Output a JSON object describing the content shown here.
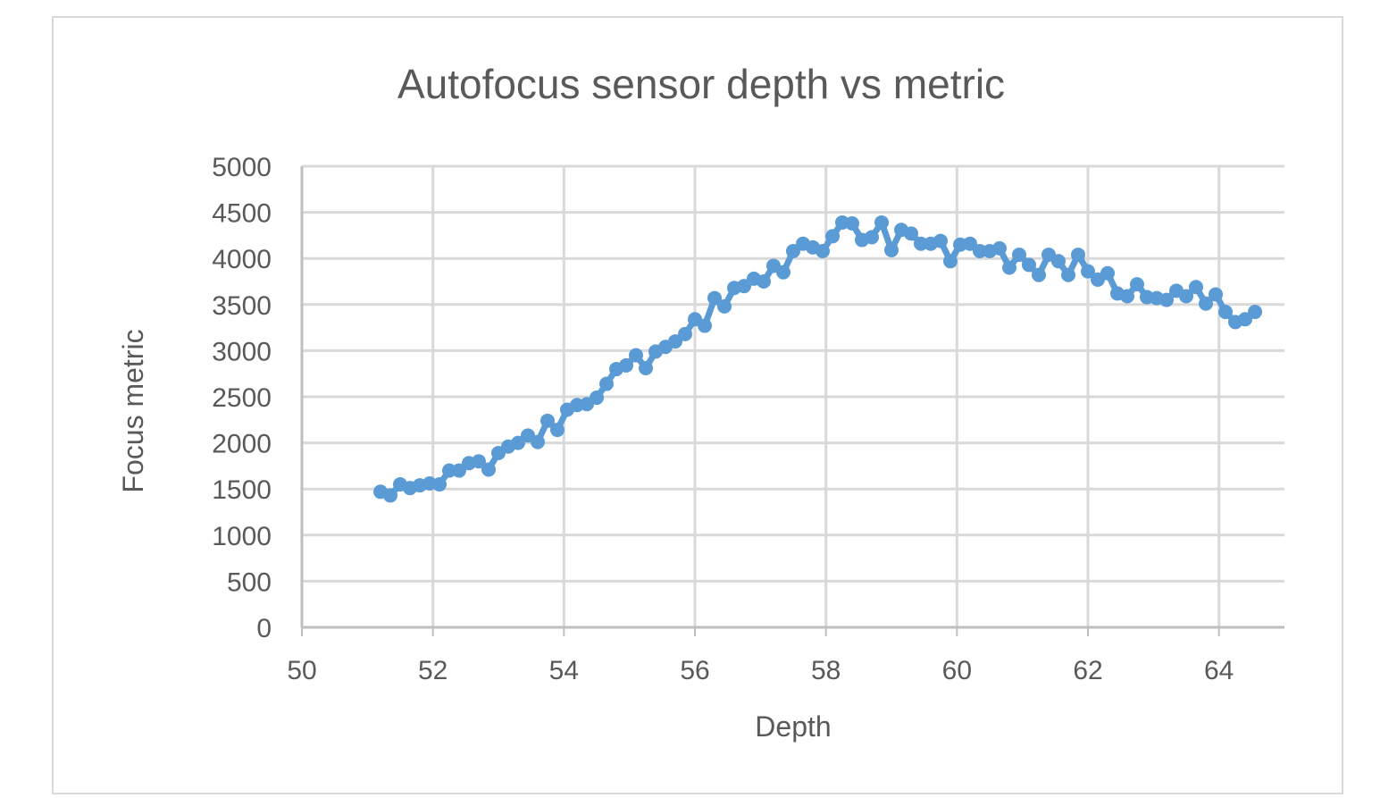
{
  "chart_data": {
    "type": "line",
    "title": "Autofocus sensor depth vs metric",
    "xlabel": "Depth",
    "ylabel": "Focus metric",
    "xlim": [
      50,
      65
    ],
    "ylim": [
      0,
      5000
    ],
    "x_ticks": [
      "50",
      "52",
      "54",
      "56",
      "58",
      "60",
      "62",
      "64"
    ],
    "y_ticks": [
      "0",
      "500",
      "1000",
      "1500",
      "2000",
      "2500",
      "3000",
      "3500",
      "4000",
      "4500",
      "5000"
    ],
    "grid": true,
    "legend": "none",
    "series_color": "#5b9bd5",
    "series": [
      {
        "x": [
          51.2,
          51.35,
          51.5,
          51.65,
          51.8,
          51.95,
          52.1,
          52.25,
          52.4,
          52.55,
          52.7,
          52.85,
          53.0,
          53.15,
          53.3,
          53.45,
          53.6,
          53.75,
          53.9,
          54.05,
          54.2,
          54.35,
          54.5,
          54.65,
          54.8,
          54.95,
          55.1,
          55.25,
          55.4,
          55.55,
          55.7,
          55.85,
          56.0,
          56.15,
          56.3,
          56.45,
          56.6,
          56.75,
          56.9,
          57.05,
          57.2,
          57.35,
          57.5,
          57.65,
          57.8,
          57.95,
          58.1,
          58.25,
          58.4,
          58.55,
          58.7,
          58.85,
          59.0,
          59.15,
          59.3,
          59.45,
          59.6,
          59.75,
          59.9,
          60.05,
          60.2,
          60.35,
          60.5,
          60.65,
          60.8,
          60.95,
          61.1,
          61.25,
          61.4,
          61.55,
          61.7,
          61.85,
          62.0,
          62.15,
          62.3,
          62.45,
          62.6,
          62.75,
          62.9,
          63.05,
          63.2,
          63.35,
          63.5,
          63.65,
          63.8,
          63.95,
          64.1,
          64.25,
          64.4,
          64.55
        ],
        "y": [
          1470,
          1430,
          1550,
          1510,
          1540,
          1560,
          1550,
          1700,
          1700,
          1780,
          1800,
          1710,
          1890,
          1960,
          2000,
          2080,
          2010,
          2240,
          2140,
          2360,
          2410,
          2420,
          2490,
          2640,
          2800,
          2840,
          2950,
          2810,
          2990,
          3040,
          3100,
          3180,
          3340,
          3270,
          3570,
          3480,
          3680,
          3700,
          3780,
          3750,
          3920,
          3850,
          4080,
          4160,
          4120,
          4080,
          4240,
          4390,
          4380,
          4200,
          4230,
          4390,
          4090,
          4310,
          4270,
          4160,
          4160,
          4190,
          3970,
          4150,
          4160,
          4080,
          4080,
          4110,
          3900,
          4040,
          3930,
          3820,
          4040,
          3970,
          3820,
          4040,
          3860,
          3770,
          3840,
          3620,
          3590,
          3720,
          3580,
          3570,
          3550,
          3650,
          3590,
          3690,
          3510,
          3610,
          3420,
          3310,
          3340,
          3420
        ]
      }
    ]
  }
}
